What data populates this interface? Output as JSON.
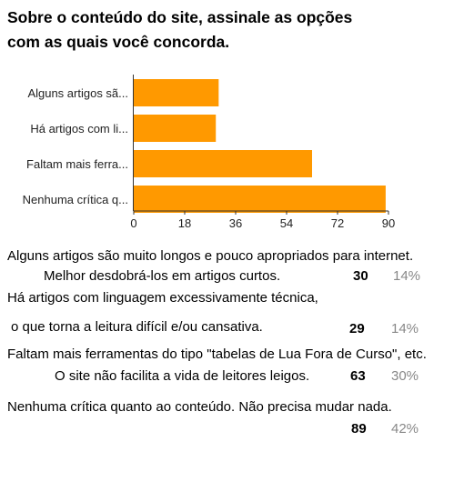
{
  "title_line1": "Sobre o conteúdo do site, assinale as opções",
  "title_line2": "com as quais você concorda.",
  "chart_data": {
    "type": "bar",
    "orientation": "horizontal",
    "categories": [
      "Alguns artigos sã...",
      "Há artigos com li...",
      "Faltam mais ferra...",
      "Nenhuma crítica q..."
    ],
    "values": [
      30,
      29,
      63,
      89
    ],
    "xlim": [
      0,
      90
    ],
    "xticks": [
      "0",
      "18",
      "36",
      "54",
      "72",
      "90"
    ],
    "bar_color": "#ff9900",
    "grid": false
  },
  "responses": [
    {
      "line1": "Alguns artigos são muito longos e pouco apropriados para internet.",
      "line2": "Melhor desdobrá-los em artigos curtos.",
      "count": "30",
      "percent": "14%"
    },
    {
      "line1": "Há artigos com linguagem excessivamente técnica,",
      "line2": "o que torna a leitura difícil e/ou cansativa.",
      "count": "29",
      "percent": "14%"
    },
    {
      "line1": "Faltam mais ferramentas do tipo \"tabelas de Lua Fora de Curso\", etc.",
      "line2": "O site não facilita a vida de leitores leigos.",
      "count": "63",
      "percent": "30%"
    },
    {
      "line1": "Nenhuma crítica quanto ao conteúdo. Não precisa mudar nada.",
      "line2": "",
      "count": "89",
      "percent": "42%"
    }
  ]
}
